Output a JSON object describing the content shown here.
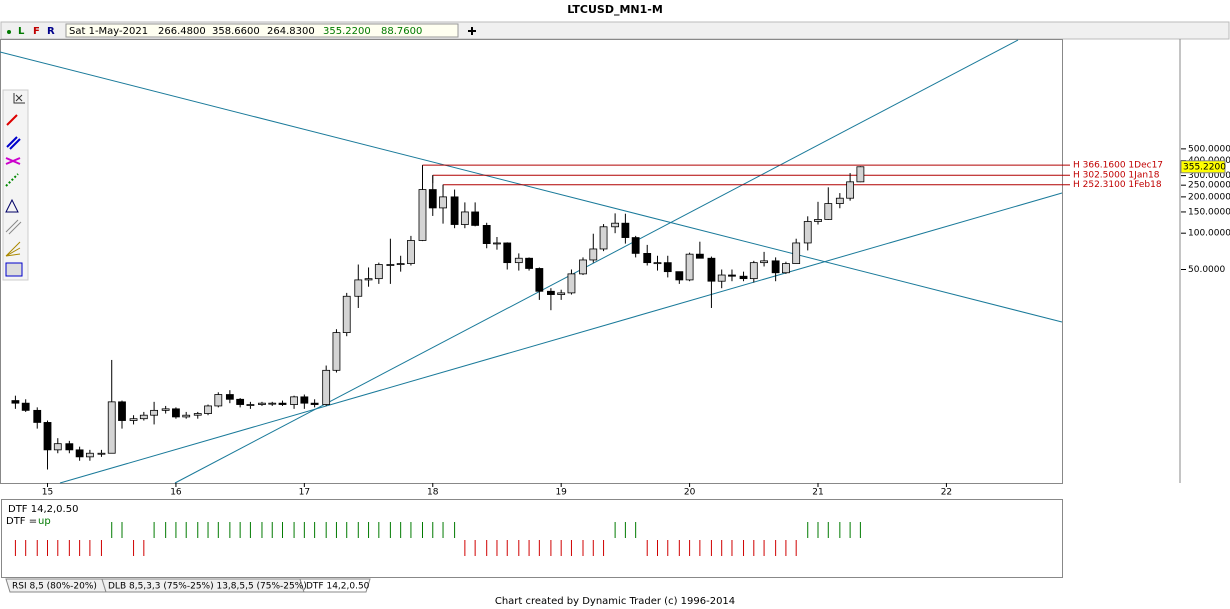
{
  "chart_data": {
    "type": "candlestick",
    "title": "LTCUSD_MN1-M",
    "header": {
      "flags": [
        "L",
        "F",
        "R"
      ],
      "date": "Sat 1-May-2021",
      "fields": [
        "266.4800",
        "358.6600",
        "264.8300",
        "355.2200",
        "88.7600"
      ]
    },
    "x": [
      14.75,
      14.83,
      14.92,
      15,
      15.08,
      15.17,
      15.25,
      15.33,
      15.42,
      15.5,
      15.58,
      15.67,
      15.75,
      15.83,
      15.92,
      16,
      16.08,
      16.17,
      16.25,
      16.33,
      16.42,
      16.5,
      16.58,
      16.67,
      16.75,
      16.83,
      16.92,
      17,
      17.08,
      17.17,
      17.25,
      17.33,
      17.42,
      17.5,
      17.58,
      17.67,
      17.75,
      17.83,
      17.92,
      18,
      18.08,
      18.17,
      18.25,
      18.33,
      18.42,
      18.5,
      18.58,
      18.67,
      18.75,
      18.83,
      18.92,
      19,
      19.08,
      19.17,
      19.25,
      19.33,
      19.42,
      19.5,
      19.58,
      19.67,
      19.75,
      19.83,
      19.92,
      20,
      20.08,
      20.17,
      20.25,
      20.33,
      20.42,
      20.5,
      20.58,
      20.67,
      20.75,
      20.83,
      20.92,
      21,
      21.08,
      21.17,
      21.25,
      21.33
    ],
    "open": [
      4.1,
      3.9,
      3.4,
      2.7,
      1.6,
      1.8,
      1.6,
      1.4,
      1.5,
      1.5,
      4.0,
      2.8,
      2.9,
      3.1,
      3.4,
      3.5,
      3.0,
      3.1,
      3.2,
      3.7,
      4.6,
      4.2,
      3.8,
      3.8,
      3.9,
      3.9,
      3.8,
      4.4,
      3.9,
      3.8,
      7.3,
      15,
      30,
      41,
      42,
      55,
      55,
      56,
      87,
      230,
      162,
      200,
      118,
      150,
      116,
      82,
      83,
      57,
      62,
      51,
      33,
      31,
      32,
      46,
      60,
      74,
      113,
      121,
      92,
      68,
      57,
      57,
      48,
      41,
      67,
      62,
      40,
      45,
      44,
      42,
      57,
      59,
      47,
      56,
      83,
      125,
      130,
      176,
      195,
      266.48
    ],
    "high": [
      4.5,
      4.2,
      3.6,
      2.8,
      2.0,
      1.9,
      1.7,
      1.6,
      1.6,
      8.9,
      4.1,
      3.1,
      3.3,
      4.0,
      3.7,
      3.6,
      3.3,
      3.3,
      3.8,
      4.8,
      5.0,
      4.3,
      4.0,
      4.0,
      4.0,
      4.1,
      4.5,
      4.6,
      4.2,
      8,
      16,
      32,
      55,
      52,
      57,
      90,
      65,
      95,
      366.16,
      302.5,
      252.31,
      230,
      180,
      180,
      122,
      93,
      84,
      68,
      63,
      52,
      35,
      34,
      50,
      63,
      99,
      119,
      146,
      145,
      95,
      80,
      65,
      65,
      48,
      69,
      85,
      64,
      50,
      50,
      48,
      59,
      70,
      63,
      58,
      90,
      138,
      182,
      240,
      215,
      315,
      358.66
    ],
    "low": [
      3.5,
      3.3,
      2.4,
      1.1,
      1.5,
      1.5,
      1.3,
      1.3,
      1.4,
      1.5,
      2.4,
      2.6,
      2.8,
      2.6,
      3.2,
      2.9,
      2.9,
      2.9,
      3.1,
      3.6,
      3.9,
      3.6,
      3.5,
      3.7,
      3.7,
      3.7,
      3.5,
      3.5,
      3.6,
      3.7,
      7.0,
      14,
      24,
      36,
      38,
      38,
      48,
      54,
      86,
      139,
      120,
      110,
      110,
      114,
      75,
      73,
      50,
      49,
      49,
      28,
      23,
      28,
      31,
      45,
      57,
      71,
      100,
      82,
      63,
      54,
      49,
      43,
      38,
      40,
      62,
      24,
      35,
      40,
      40,
      39,
      53,
      40,
      46,
      56,
      72,
      118,
      129,
      161,
      186,
      264.83
    ],
    "close": [
      3.9,
      3.4,
      2.7,
      1.6,
      1.8,
      1.6,
      1.4,
      1.5,
      1.5,
      4.0,
      2.8,
      2.9,
      3.1,
      3.4,
      3.5,
      3.0,
      3.1,
      3.2,
      3.7,
      4.6,
      4.2,
      3.8,
      3.8,
      3.9,
      3.9,
      3.8,
      4.4,
      3.9,
      3.8,
      7.3,
      15,
      30,
      41,
      42,
      55,
      55,
      56,
      87,
      230,
      162,
      200,
      118,
      150,
      116,
      82,
      83,
      57,
      62,
      51,
      33,
      31,
      32,
      46,
      60,
      74,
      113,
      121,
      92,
      68,
      57,
      57,
      48,
      41,
      67,
      62,
      40,
      45,
      44,
      42,
      57,
      59,
      47,
      56,
      83,
      125,
      130,
      176,
      195,
      266.48,
      355.22
    ],
    "last_price": {
      "value": 355.22,
      "label": "355.2200"
    },
    "xlim": [
      14.63,
      22.9
    ],
    "xticks": [
      15,
      16,
      17,
      18,
      19,
      20,
      21,
      22
    ],
    "ylim": [
      0.85,
      4070
    ],
    "log_scale": true,
    "yticks": [
      {
        "value": 500,
        "label": "500.0000"
      },
      {
        "value": 400,
        "label": "400.0000"
      },
      {
        "value": 300,
        "label": "300.0000"
      },
      {
        "value": 250,
        "label": "250.0000"
      },
      {
        "value": 200,
        "label": "200.0000"
      },
      {
        "value": 150,
        "label": "150.0000"
      },
      {
        "value": 100,
        "label": "100.0000"
      },
      {
        "value": 50,
        "label": "50.0000"
      }
    ],
    "annotations": [
      {
        "value": 366.16,
        "label": "H 366.1600 1Dec17"
      },
      {
        "value": 302.5,
        "label": "H 302.5000 1Jan18"
      },
      {
        "value": 252.31,
        "label": "H 252.3100 1Feb18"
      }
    ],
    "up_color": "#d4d4d4",
    "down_color": "#000000",
    "indicator": {
      "label": "DTF 14,2,0.50",
      "state_label": "DTF =",
      "state": "up",
      "up_color": "#007a00",
      "down_color": "#d00000",
      "values": [
        -1,
        -1,
        -1,
        -1,
        -1,
        -1,
        -1,
        -1,
        -1,
        1,
        1,
        -1,
        -1,
        1,
        1,
        1,
        1,
        1,
        1,
        1,
        1,
        1,
        1,
        1,
        1,
        1,
        1,
        1,
        1,
        1,
        1,
        1,
        1,
        1,
        1,
        1,
        1,
        1,
        1,
        1,
        1,
        1,
        -1,
        -1,
        -1,
        -1,
        -1,
        -1,
        -1,
        -1,
        -1,
        -1,
        -1,
        -1,
        -1,
        -1,
        1,
        1,
        1,
        -1,
        -1,
        -1,
        -1,
        -1,
        -1,
        -1,
        -1,
        -1,
        -1,
        -1,
        -1,
        -1,
        -1,
        -1,
        1,
        1,
        1,
        1,
        1,
        1
      ]
    },
    "tabs": [
      "RSI 8,5 (80%-20%)",
      "DLB 8,5,3,3 (75%-25%) 13,8,5,5 (75%-25%)",
      "DTF 14,2,0.50"
    ],
    "footer": "Chart created by Dynamic Trader  (c) 1996-2014"
  }
}
